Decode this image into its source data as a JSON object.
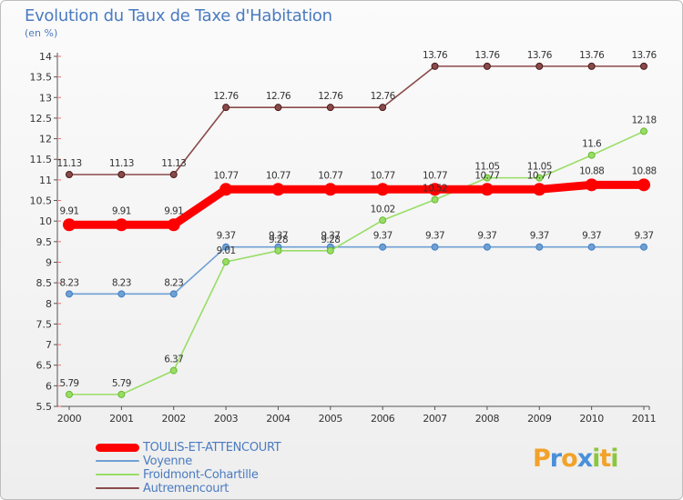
{
  "chart_data": {
    "type": "line",
    "title": "Evolution du Taux de Taxe d'Habitation",
    "ylabel": "(en %)",
    "xlabel": "",
    "x": [
      2000,
      2001,
      2002,
      2003,
      2004,
      2005,
      2006,
      2007,
      2008,
      2009,
      2010,
      2011
    ],
    "ylim": [
      5.5,
      14
    ],
    "yticks": [
      5.5,
      6,
      6.5,
      7,
      7.5,
      8,
      8.5,
      9,
      9.5,
      10,
      10.5,
      11,
      11.5,
      12,
      12.5,
      13,
      13.5,
      14
    ],
    "grid": false,
    "legend_position": "bottom-left",
    "series": [
      {
        "name": "TOULIS-ET-ATTENCOURT",
        "color": "#ff0000",
        "values": [
          9.91,
          9.91,
          9.91,
          10.77,
          10.77,
          10.77,
          10.77,
          10.77,
          10.77,
          10.77,
          10.88,
          10.88
        ]
      },
      {
        "name": "Voyenne",
        "color": "#6f9fd4",
        "values": [
          8.23,
          8.23,
          8.23,
          9.37,
          9.37,
          9.37,
          9.37,
          9.37,
          9.37,
          9.37,
          9.37,
          9.37
        ]
      },
      {
        "name": "Froidmont-Cohartille",
        "color": "#99dd66",
        "values": [
          5.79,
          5.79,
          6.37,
          9.01,
          9.28,
          9.28,
          10.02,
          10.52,
          11.05,
          11.05,
          11.6,
          12.18
        ]
      },
      {
        "name": "Autremencourt",
        "color": "#8a4a4a",
        "values": [
          11.13,
          11.13,
          11.13,
          12.76,
          12.76,
          12.76,
          12.76,
          13.76,
          13.76,
          13.76,
          13.76,
          13.76
        ]
      }
    ],
    "data_labels": [
      [
        "9.91",
        "9.91",
        "9.91",
        "10.77",
        "10.77",
        "10.77",
        "10.77",
        "10.77",
        "10.77",
        "10.77",
        "10.88",
        "10.88"
      ],
      [
        "8.23",
        "8.23",
        "8.23",
        "9.37",
        "9.37",
        "9.37",
        "9.37",
        "9.37",
        "9.37",
        "9.37",
        "9.37",
        "9.37"
      ],
      [
        "5.79",
        "5.79",
        "6.37",
        "9.01",
        "9.28",
        "9.28",
        "10.02",
        "10.52",
        "11.05",
        "11.05",
        "11.6",
        "12.18"
      ],
      [
        "11.13",
        "11.13",
        "11.13",
        "12.76",
        "12.76",
        "12.76",
        "12.76",
        "13.76",
        "13.76",
        "13.76",
        "13.76",
        "13.76"
      ]
    ]
  },
  "logo": {
    "letters": [
      "P",
      "r",
      "o",
      "x",
      "i",
      "t",
      "i"
    ],
    "colors": [
      "#f2a22a",
      "#4a90d9",
      "#f2a22a",
      "#4a90d9",
      "#8cc63f",
      "#f2a22a",
      "#8cc63f"
    ]
  }
}
